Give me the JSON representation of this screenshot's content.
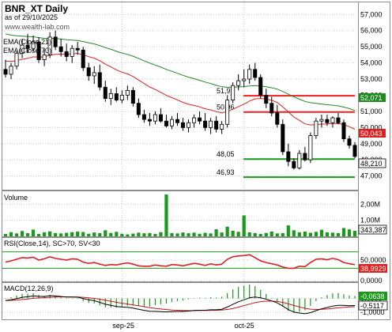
{
  "header": {
    "title": "BNR_XT Daily",
    "as_of": "as of 29/10/2025",
    "website": "www.wealth-lab.com",
    "ema21_label": "EMA(Close,21)",
    "ema70_label": "EMA(Close,70)"
  },
  "colors": {
    "up_candle": "#000000",
    "down_candle": "#000000",
    "ema21": "#e02020",
    "ema70": "#1f8a1f",
    "volume": "#1a9a1a",
    "rsi": "#e02020",
    "macd": "#000000",
    "signal": "#c01818",
    "histogram": "#1a9a1a",
    "level_red": "#ee2222",
    "level_green": "#1a9a1a",
    "grid": "#c8c8c8",
    "frame": "#8c8c8c"
  },
  "chart_data": [
    {
      "type": "candlestick",
      "name": "price",
      "title": "BNR_XT Daily",
      "y_ticks": [
        "47,000",
        "48,000",
        "49,000",
        "50,000",
        "51,000",
        "52,000",
        "53,000",
        "54,000",
        "55,000",
        "56,000",
        "57,000"
      ],
      "ylim": [
        46.2,
        57.7
      ],
      "dates": [
        "2025-08-01",
        "2025-08-04",
        "2025-08-05",
        "2025-08-06",
        "2025-08-07",
        "2025-08-08",
        "2025-08-11",
        "2025-08-12",
        "2025-08-13",
        "2025-08-14",
        "2025-08-15",
        "2025-08-18",
        "2025-08-19",
        "2025-08-20",
        "2025-08-21",
        "2025-08-22",
        "2025-08-25",
        "2025-08-26",
        "2025-08-27",
        "2025-08-28",
        "2025-08-29",
        "2025-09-01",
        "2025-09-02",
        "2025-09-03",
        "2025-09-04",
        "2025-09-05",
        "2025-09-08",
        "2025-09-09",
        "2025-09-10",
        "2025-09-11",
        "2025-09-12",
        "2025-09-15",
        "2025-09-16",
        "2025-09-17",
        "2025-09-18",
        "2025-09-19",
        "2025-09-22",
        "2025-09-23",
        "2025-09-24",
        "2025-09-25",
        "2025-09-26",
        "2025-09-29",
        "2025-09-30",
        "2025-10-01",
        "2025-10-02",
        "2025-10-03",
        "2025-10-06",
        "2025-10-07",
        "2025-10-08",
        "2025-10-09",
        "2025-10-10",
        "2025-10-13",
        "2025-10-14",
        "2025-10-15",
        "2025-10-16",
        "2025-10-17",
        "2025-10-20",
        "2025-10-21",
        "2025-10-22",
        "2025-10-23",
        "2025-10-24",
        "2025-10-27",
        "2025-10-28",
        "2025-10-29"
      ],
      "x_labels": [
        {
          "label": "sep-25",
          "date": "2025-09-01"
        },
        {
          "label": "oct-25",
          "date": "2025-10-01"
        }
      ],
      "ohlc": [
        [
          53.6,
          54.2,
          53.1,
          53.3
        ],
        [
          53.3,
          54.0,
          53.0,
          53.8
        ],
        [
          53.8,
          54.7,
          53.6,
          54.6
        ],
        [
          54.6,
          55.5,
          54.3,
          55.1
        ],
        [
          55.1,
          55.8,
          54.6,
          54.9
        ],
        [
          54.9,
          55.7,
          54.7,
          55.3
        ],
        [
          55.3,
          55.6,
          54.0,
          54.2
        ],
        [
          54.2,
          54.9,
          53.8,
          54.5
        ],
        [
          54.5,
          55.9,
          54.3,
          55.6
        ],
        [
          55.6,
          56.0,
          54.8,
          55.0
        ],
        [
          55.0,
          55.5,
          54.4,
          54.7
        ],
        [
          54.7,
          55.2,
          54.1,
          54.4
        ],
        [
          54.4,
          55.1,
          54.0,
          54.9
        ],
        [
          54.9,
          55.3,
          54.5,
          54.8
        ],
        [
          54.8,
          55.0,
          53.5,
          53.7
        ],
        [
          53.7,
          54.0,
          52.9,
          53.2
        ],
        [
          53.2,
          53.8,
          52.7,
          53.4
        ],
        [
          53.4,
          53.9,
          52.3,
          52.5
        ],
        [
          52.5,
          52.9,
          51.6,
          51.8
        ],
        [
          51.8,
          52.4,
          51.4,
          52.1
        ],
        [
          52.1,
          52.5,
          51.6,
          51.7
        ],
        [
          51.7,
          52.3,
          51.5,
          52.0
        ],
        [
          52.0,
          52.6,
          51.7,
          52.3
        ],
        [
          52.3,
          52.5,
          51.3,
          51.5
        ],
        [
          51.5,
          51.8,
          50.6,
          50.8
        ],
        [
          50.8,
          51.1,
          50.3,
          50.5
        ],
        [
          50.5,
          50.9,
          50.1,
          50.4
        ],
        [
          50.4,
          51.0,
          50.2,
          50.8
        ],
        [
          50.8,
          51.2,
          50.3,
          50.4
        ],
        [
          50.4,
          50.8,
          50.0,
          50.1
        ],
        [
          50.1,
          50.7,
          49.9,
          50.5
        ],
        [
          50.5,
          50.9,
          50.1,
          50.3
        ],
        [
          50.3,
          50.6,
          49.8,
          50.0
        ],
        [
          50.0,
          50.5,
          49.7,
          50.3
        ],
        [
          50.3,
          50.8,
          50.0,
          50.6
        ],
        [
          50.6,
          51.0,
          50.2,
          50.4
        ],
        [
          50.4,
          50.9,
          49.8,
          50.0
        ],
        [
          50.0,
          50.6,
          49.6,
          50.4
        ],
        [
          50.4,
          50.7,
          49.7,
          49.9
        ],
        [
          49.9,
          50.4,
          49.6,
          50.2
        ],
        [
          50.2,
          52.0,
          50.0,
          51.7
        ],
        [
          51.7,
          52.8,
          51.5,
          52.6
        ],
        [
          52.6,
          53.3,
          52.3,
          52.9
        ],
        [
          52.9,
          53.6,
          52.5,
          53.0
        ],
        [
          53.0,
          53.9,
          52.7,
          53.6
        ],
        [
          53.6,
          54.0,
          52.9,
          53.1
        ],
        [
          53.1,
          53.3,
          51.8,
          52.0
        ],
        [
          52.0,
          52.4,
          51.2,
          51.5
        ],
        [
          51.5,
          51.9,
          50.7,
          50.9
        ],
        [
          50.9,
          51.4,
          50.0,
          50.2
        ],
        [
          50.2,
          50.5,
          48.3,
          48.5
        ],
        [
          48.5,
          49.0,
          47.6,
          47.9
        ],
        [
          47.9,
          48.1,
          47.4,
          47.5
        ],
        [
          47.5,
          48.6,
          47.4,
          48.4
        ],
        [
          48.4,
          48.8,
          47.9,
          48.0
        ],
        [
          48.0,
          49.7,
          47.8,
          49.5
        ],
        [
          49.5,
          50.6,
          49.3,
          50.4
        ],
        [
          50.4,
          50.8,
          50.0,
          50.5
        ],
        [
          50.5,
          50.8,
          50.1,
          50.3
        ],
        [
          50.3,
          50.7,
          50.0,
          50.6
        ],
        [
          50.6,
          50.9,
          50.2,
          50.3
        ],
        [
          50.3,
          50.5,
          49.1,
          49.3
        ],
        [
          49.3,
          49.5,
          48.7,
          48.9
        ],
        [
          48.9,
          49.1,
          48.1,
          48.21
        ]
      ],
      "series": [
        {
          "name": "EMA(Close,21)",
          "current": "50,043"
        },
        {
          "name": "EMA(Close,70)",
          "current": "52,071"
        }
      ],
      "last_close": "48,210",
      "levels": [
        {
          "label": "51,97",
          "value": 51.97,
          "color": "red"
        },
        {
          "label": "50,96",
          "value": 50.96,
          "color": "red"
        },
        {
          "label": "48,05",
          "value": 48.05,
          "color": "green"
        },
        {
          "label": "46,93",
          "value": 46.93,
          "color": "green"
        }
      ]
    },
    {
      "type": "bar",
      "name": "volume",
      "title": "Volume",
      "y_ticks": [
        "2,00M",
        "1,00M"
      ],
      "ylim": [
        0,
        2700000
      ],
      "current": "343,387",
      "values": [
        150000,
        260000,
        180000,
        330000,
        200000,
        420000,
        150000,
        250000,
        310000,
        200000,
        180000,
        220000,
        260000,
        300000,
        270000,
        160000,
        240000,
        200000,
        380000,
        210000,
        280000,
        160000,
        120000,
        170000,
        230000,
        190000,
        200000,
        150000,
        260000,
        2600000,
        200000,
        180000,
        240000,
        190000,
        230000,
        160000,
        220000,
        180000,
        440000,
        240000,
        600000,
        350000,
        280000,
        1300000,
        250000,
        200000,
        150000,
        210000,
        300000,
        180000,
        200000,
        680000,
        380000,
        250000,
        300000,
        220000,
        280000,
        410000,
        250000,
        230000,
        200000,
        520000,
        430000,
        343387
      ]
    },
    {
      "type": "line",
      "name": "rsi",
      "title": "RSI(Close,14), SC>70, SV<30",
      "y_ticks": [
        "50,0000",
        "0,0000"
      ],
      "ylim": [
        0,
        100
      ],
      "bands": [
        30,
        70
      ],
      "current": "38,9929",
      "values": [
        45,
        48,
        52,
        56,
        55,
        57,
        50,
        53,
        58,
        54,
        52,
        50,
        53,
        52,
        45,
        42,
        44,
        40,
        37,
        39,
        38,
        41,
        43,
        40,
        36,
        35,
        35,
        38,
        36,
        35,
        39,
        38,
        36,
        39,
        42,
        40,
        37,
        41,
        38,
        40,
        52,
        58,
        60,
        61,
        63,
        56,
        48,
        44,
        41,
        38,
        33,
        30,
        30,
        35,
        34,
        44,
        52,
        53,
        51,
        54,
        51,
        44,
        41,
        38.99
      ]
    },
    {
      "type": "line",
      "name": "macd",
      "title": "MACD(12,26,9)",
      "y_ticks": [
        "0,0000",
        "-1,0000"
      ],
      "ylim": [
        -1.45,
        1.0
      ],
      "current_histogram": "-0,0638",
      "current_macd": "-0,5117",
      "values": [
        -0.15,
        -0.1,
        -0.02,
        0.08,
        0.12,
        0.18,
        0.15,
        0.14,
        0.2,
        0.18,
        0.14,
        0.1,
        0.1,
        0.09,
        0.0,
        -0.1,
        -0.16,
        -0.28,
        -0.42,
        -0.5,
        -0.58,
        -0.62,
        -0.64,
        -0.7,
        -0.78,
        -0.86,
        -0.92,
        -0.93,
        -0.95,
        -0.97,
        -0.95,
        -0.94,
        -0.94,
        -0.91,
        -0.87,
        -0.85,
        -0.85,
        -0.82,
        -0.82,
        -0.78,
        -0.62,
        -0.42,
        -0.24,
        -0.1,
        0.05,
        0.1,
        0.05,
        -0.05,
        -0.18,
        -0.32,
        -0.55,
        -0.8,
        -0.98,
        -1.05,
        -1.1,
        -1.02,
        -0.88,
        -0.75,
        -0.65,
        -0.55,
        -0.5,
        -0.5,
        -0.52,
        -0.5117
      ]
    }
  ]
}
